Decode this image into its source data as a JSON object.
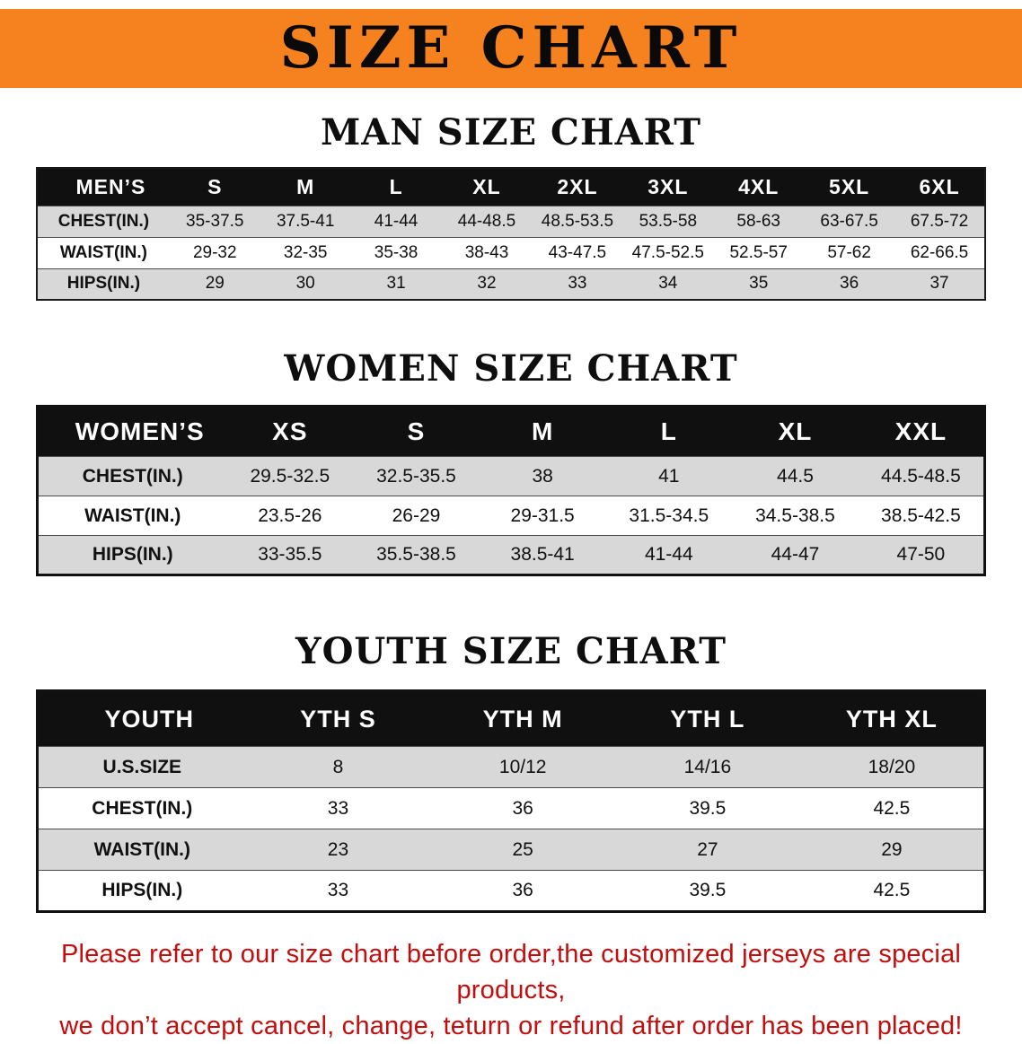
{
  "banner": {
    "title": "SIZE CHART"
  },
  "sections": [
    {
      "heading": "MAN SIZE CHART",
      "table": {
        "corner": "MEN’S",
        "columns": [
          "S",
          "M",
          "L",
          "XL",
          "2XL",
          "3XL",
          "4XL",
          "5XL",
          "6XL"
        ],
        "rows": [
          {
            "label": "CHEST(IN.)",
            "values": [
              "35-37.5",
              "37.5-41",
              "41-44",
              "44-48.5",
              "48.5-53.5",
              "53.5-58",
              "58-63",
              "63-67.5",
              "67.5-72"
            ]
          },
          {
            "label": "WAIST(IN.)",
            "values": [
              "29-32",
              "32-35",
              "35-38",
              "38-43",
              "43-47.5",
              "47.5-52.5",
              "52.5-57",
              "57-62",
              "62-66.5"
            ]
          },
          {
            "label": "HIPS(IN.)",
            "values": [
              "29",
              "30",
              "31",
              "32",
              "33",
              "34",
              "35",
              "36",
              "37"
            ]
          }
        ]
      }
    },
    {
      "heading": "WOMEN SIZE CHART",
      "table": {
        "corner": "WOMEN’S",
        "columns": [
          "XS",
          "S",
          "M",
          "L",
          "XL",
          "XXL"
        ],
        "rows": [
          {
            "label": "CHEST(IN.)",
            "values": [
              "29.5-32.5",
              "32.5-35.5",
              "38",
              "41",
              "44.5",
              "44.5-48.5"
            ]
          },
          {
            "label": "WAIST(IN.)",
            "values": [
              "23.5-26",
              "26-29",
              "29-31.5",
              "31.5-34.5",
              "34.5-38.5",
              "38.5-42.5"
            ]
          },
          {
            "label": "HIPS(IN.)",
            "values": [
              "33-35.5",
              "35.5-38.5",
              "38.5-41",
              "41-44",
              "44-47",
              "47-50"
            ]
          }
        ]
      }
    },
    {
      "heading": "YOUTH SIZE CHART",
      "table": {
        "corner": "YOUTH",
        "columns": [
          "YTH S",
          "YTH M",
          "YTH L",
          "YTH XL"
        ],
        "rows": [
          {
            "label": "U.S.SIZE",
            "values": [
              "8",
              "10/12",
              "14/16",
              "18/20"
            ]
          },
          {
            "label": "CHEST(IN.)",
            "values": [
              "33",
              "36",
              "39.5",
              "42.5"
            ]
          },
          {
            "label": "WAIST(IN.)",
            "values": [
              "23",
              "25",
              "27",
              "29"
            ]
          },
          {
            "label": "HIPS(IN.)",
            "values": [
              "33",
              "36",
              "39.5",
              "42.5"
            ]
          }
        ]
      }
    }
  ],
  "footer": {
    "line1": "Please refer to our size chart before order,the customized jerseys are special products,",
    "line2": "we don’t accept cancel, change, teturn or refund after order has been placed!"
  },
  "colors": {
    "banner_orange": "#F5821F",
    "header_black": "#101010",
    "row_gray": "#D8D8D8",
    "footer_red": "#C40D0D"
  }
}
